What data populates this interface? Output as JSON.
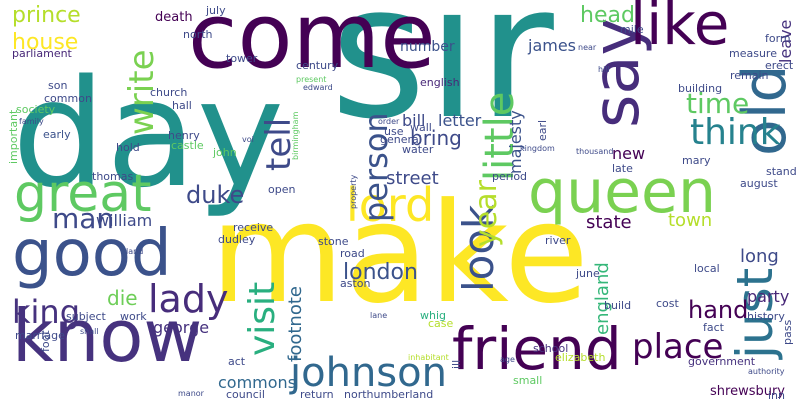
{
  "words": [
    {
      "text": "sir",
      "color": "#21918c"
    },
    {
      "text": "day",
      "color": "#21918c"
    },
    {
      "text": "make",
      "color": "#fde725"
    },
    {
      "text": "come",
      "color": "#440154"
    },
    {
      "text": "know",
      "color": "#46327e"
    },
    {
      "text": "good",
      "color": "#3b528b"
    },
    {
      "text": "queen",
      "color": "#7ad151"
    },
    {
      "text": "friend",
      "color": "#440154"
    },
    {
      "text": "say",
      "color": "#472d7b"
    },
    {
      "text": "old",
      "color": "#31688e"
    },
    {
      "text": "great",
      "color": "#5ec962"
    },
    {
      "text": "like",
      "color": "#440154"
    },
    {
      "text": "just",
      "color": "#2c728e"
    },
    {
      "text": "lord",
      "color": "#fde725"
    },
    {
      "text": "look",
      "color": "#3b528b"
    },
    {
      "text": "little",
      "color": "#5ec962"
    },
    {
      "text": "lady",
      "color": "#472d7b"
    },
    {
      "text": "johnson",
      "color": "#31688e"
    },
    {
      "text": "visit",
      "color": "#29af7f"
    },
    {
      "text": "think",
      "color": "#26828e"
    },
    {
      "text": "place",
      "color": "#440154"
    },
    {
      "text": "tell",
      "color": "#3e4a89"
    },
    {
      "text": "king",
      "color": "#46327e"
    },
    {
      "text": "write",
      "color": "#7ad151"
    },
    {
      "text": "person",
      "color": "#3b528b"
    },
    {
      "text": "year",
      "color": "#b5de2b"
    },
    {
      "text": "time",
      "color": "#5ec962"
    },
    {
      "text": "man",
      "color": "#3e4a89"
    },
    {
      "text": "head",
      "color": "#5ec962"
    },
    {
      "text": "duke",
      "color": "#3e4a89"
    },
    {
      "text": "hand",
      "color": "#440154"
    },
    {
      "text": "london",
      "color": "#3b528b"
    },
    {
      "text": "house",
      "color": "#fde725"
    },
    {
      "text": "prince",
      "color": "#b5de2b"
    },
    {
      "text": "bring",
      "color": "#3e4a89"
    },
    {
      "text": "footnote",
      "color": "#31688e"
    },
    {
      "text": "england",
      "color": "#35b779"
    },
    {
      "text": "street",
      "color": "#3e4a89"
    },
    {
      "text": "state",
      "color": "#440154"
    },
    {
      "text": "town",
      "color": "#b5de2b"
    },
    {
      "text": "long",
      "color": "#3e4a89"
    },
    {
      "text": "william",
      "color": "#3e4a89"
    },
    {
      "text": "die",
      "color": "#6ece58"
    },
    {
      "text": "george",
      "color": "#46327e"
    },
    {
      "text": "commons",
      "color": "#31688e"
    },
    {
      "text": "majesty",
      "color": "#3b528b"
    },
    {
      "text": "new",
      "color": "#440154"
    },
    {
      "text": "party",
      "color": "#482878"
    },
    {
      "text": "letter",
      "color": "#3b528b"
    },
    {
      "text": "leave",
      "color": "#46327e"
    },
    {
      "text": "james",
      "color": "#3b528b"
    },
    {
      "text": "number",
      "color": "#3b528b"
    },
    {
      "text": "bill",
      "color": "#3e4a89"
    },
    {
      "text": "shrewsbury",
      "color": "#440154"
    },
    {
      "text": "death",
      "color": "#440154"
    },
    {
      "text": "parliament",
      "color": "#482878"
    },
    {
      "text": "son",
      "color": "#3e4a89"
    },
    {
      "text": "common",
      "color": "#3e4a89"
    },
    {
      "text": "society",
      "color": "#5ec962"
    },
    {
      "text": "early",
      "color": "#3b528b"
    },
    {
      "text": "church",
      "color": "#3e4a89"
    },
    {
      "text": "hall",
      "color": "#3e4a89"
    },
    {
      "text": "henry",
      "color": "#3e4a89"
    },
    {
      "text": "english",
      "color": "#482878"
    },
    {
      "text": "century",
      "color": "#3e4a89"
    },
    {
      "text": "history",
      "color": "#3e4a89"
    },
    {
      "text": "august",
      "color": "#3e4a89"
    },
    {
      "text": "june",
      "color": "#3e4a89"
    },
    {
      "text": "cost",
      "color": "#3e4a89"
    },
    {
      "text": "fact",
      "color": "#3e4a89"
    },
    {
      "text": "government",
      "color": "#46327e"
    },
    {
      "text": "school",
      "color": "#46327e"
    },
    {
      "text": "period",
      "color": "#3e4a89"
    },
    {
      "text": "receive",
      "color": "#3e4a89"
    },
    {
      "text": "council",
      "color": "#3e4a89"
    },
    {
      "text": "road",
      "color": "#3e4a89"
    },
    {
      "text": "aston",
      "color": "#3e4a89"
    },
    {
      "text": "whig",
      "color": "#29af7f"
    },
    {
      "text": "case",
      "color": "#b5de2b"
    },
    {
      "text": "subject",
      "color": "#3e4a89"
    },
    {
      "text": "work",
      "color": "#3e4a89"
    },
    {
      "text": "marriage",
      "color": "#3e4a89"
    },
    {
      "text": "act",
      "color": "#3e4a89"
    },
    {
      "text": "open",
      "color": "#3e4a89"
    },
    {
      "text": "dudley",
      "color": "#3e4a89"
    },
    {
      "text": "elizabeth",
      "color": "#b5de2b"
    },
    {
      "text": "return",
      "color": "#3e4a89"
    },
    {
      "text": "northumberland",
      "color": "#3e4a89"
    },
    {
      "text": "stone",
      "color": "#3e4a89"
    },
    {
      "text": "measure",
      "color": "#3e4a89"
    },
    {
      "text": "form",
      "color": "#3e4a89"
    },
    {
      "text": "remain",
      "color": "#3e4a89"
    },
    {
      "text": "local",
      "color": "#3e4a89"
    },
    {
      "text": "building",
      "color": "#3e4a89"
    },
    {
      "text": "build",
      "color": "#3e4a89"
    },
    {
      "text": "july",
      "color": "#3e4a89"
    },
    {
      "text": "north",
      "color": "#3e4a89"
    },
    {
      "text": "tower",
      "color": "#3e4a89"
    },
    {
      "text": "john",
      "color": "#5ec962"
    },
    {
      "text": "castle",
      "color": "#5ec962"
    },
    {
      "text": "thomas",
      "color": "#3e4a89"
    },
    {
      "text": "hold",
      "color": "#3e4a89"
    },
    {
      "text": "important",
      "color": "#5ec962"
    },
    {
      "text": "foot",
      "color": "#3e4a89"
    },
    {
      "text": "inn",
      "color": "#3e4a89"
    },
    {
      "text": "mile",
      "color": "#3e4a89"
    },
    {
      "text": "erect",
      "color": "#3e4a89"
    },
    {
      "text": "wall",
      "color": "#3e4a89"
    },
    {
      "text": "use",
      "color": "#3e4a89"
    },
    {
      "text": "general",
      "color": "#3e4a89"
    },
    {
      "text": "water",
      "color": "#3e4a89"
    },
    {
      "text": "earl",
      "color": "#3e4a89"
    },
    {
      "text": "mary",
      "color": "#3e4a89"
    },
    {
      "text": "late",
      "color": "#3e4a89"
    },
    {
      "text": "stand",
      "color": "#3e4a89"
    },
    {
      "text": "birmingham",
      "color": "#5ec962"
    },
    {
      "text": "river",
      "color": "#3e4a89"
    },
    {
      "text": "pass",
      "color": "#3e4a89"
    },
    {
      "text": "small",
      "color": "#5ec962"
    },
    {
      "text": "ill",
      "color": "#3e4a89"
    },
    {
      "text": "present",
      "color": "#5ec962"
    },
    {
      "text": "edward",
      "color": "#3e4a89"
    },
    {
      "text": "family",
      "color": "#3e4a89"
    },
    {
      "text": "thousand",
      "color": "#3e4a89"
    },
    {
      "text": "kingdom",
      "color": "#3e4a89"
    },
    {
      "text": "land",
      "color": "#3e4a89"
    },
    {
      "text": "shall",
      "color": "#3e4a89"
    },
    {
      "text": "manor",
      "color": "#3e4a89"
    },
    {
      "text": "near",
      "color": "#3e4a89"
    },
    {
      "text": "hill",
      "color": "#3e4a89"
    },
    {
      "text": "age",
      "color": "#3e4a89"
    },
    {
      "text": "lane",
      "color": "#3e4a89"
    },
    {
      "text": "order",
      "color": "#3e4a89"
    },
    {
      "text": "property",
      "color": "#3e4a89"
    },
    {
      "text": "vol",
      "color": "#3e4a89"
    },
    {
      "text": "inhabitant",
      "color": "#b5de2b"
    },
    {
      "text": "authority",
      "color": "#3e4a89"
    }
  ]
}
